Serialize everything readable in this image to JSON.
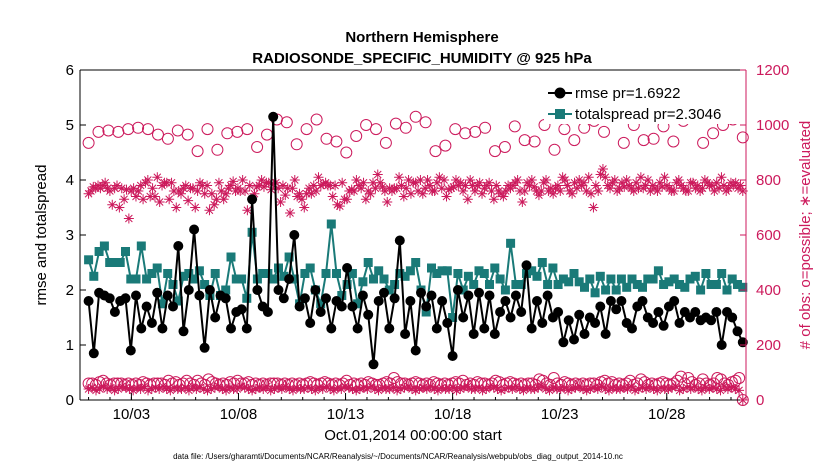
{
  "chart_data": {
    "type": "line",
    "title": [
      "Northern Hemisphere",
      "RADIOSONDE_SPECIFIC_HUMIDITY @ 925 hPa"
    ],
    "xlabel": "Oct.01,2014 00:00:00 start",
    "ylabel_left": "rmse and totalspread",
    "ylabel_right": "# of obs: o=possible; ∗=evaluated",
    "footer": "data file: /Users/gharamti/Documents/NCAR/Reanalysis/~/Documents/NCAR/Reanalysis/webpub/obs_diag_output_2014-10.nc",
    "x_range": [
      0.6,
      31.7
    ],
    "x_ticks": [
      {
        "day": 3,
        "label": "10/03"
      },
      {
        "day": 8,
        "label": "10/08"
      },
      {
        "day": 13,
        "label": "10/13"
      },
      {
        "day": 18,
        "label": "10/18"
      },
      {
        "day": 23,
        "label": "10/23"
      },
      {
        "day": 28,
        "label": "10/28"
      }
    ],
    "ylim_left": [
      0,
      6
    ],
    "yticks_left": [
      "0",
      "1",
      "2",
      "3",
      "4",
      "5",
      "6"
    ],
    "ylim_right": [
      0,
      1200
    ],
    "yticks_right": [
      "0",
      "200",
      "400",
      "600",
      "800",
      "1000",
      "1200"
    ],
    "legend": [
      {
        "label": "rmse pr=1.6922",
        "color": "#000000",
        "marker": "circle"
      },
      {
        "label": "totalspread pr=2.3046",
        "color": "#1a7a78",
        "marker": "square"
      }
    ],
    "colors": {
      "rmse": "#000000",
      "spread": "#1a7a78",
      "obs": "#cc1a5c"
    },
    "series": [
      {
        "name": "rmse",
        "axis": "left",
        "values": [
          1.8,
          0.85,
          1.95,
          1.9,
          1.85,
          1.6,
          1.8,
          1.85,
          0.9,
          1.9,
          1.3,
          1.7,
          1.4,
          1.95,
          1.3,
          1.9,
          1.7,
          2.8,
          1.25,
          2.0,
          3.1,
          1.9,
          0.95,
          2.0,
          1.5,
          1.9,
          1.85,
          1.3,
          1.6,
          1.65,
          1.3,
          3.65,
          2.0,
          1.7,
          1.6,
          5.15,
          2.0,
          1.85,
          2.2,
          3.0,
          1.7,
          1.85,
          1.4,
          2.0,
          1.6,
          1.85,
          1.3,
          1.8,
          1.7,
          2.4,
          1.7,
          1.3,
          1.9,
          1.55,
          0.65,
          1.8,
          1.95,
          1.3,
          1.85,
          2.9,
          1.2,
          1.8,
          0.9,
          1.95,
          1.7,
          1.9,
          1.3,
          1.8,
          1.4,
          0.8,
          2.0,
          1.5,
          1.9,
          1.2,
          1.95,
          1.3,
          1.9,
          1.2,
          1.6,
          1.8,
          1.5,
          1.9,
          1.6,
          2.45,
          1.3,
          1.8,
          1.4,
          1.9,
          1.5,
          1.6,
          1.05,
          1.45,
          1.1,
          1.55,
          1.2,
          1.5,
          1.4,
          1.7,
          1.2,
          1.8,
          1.65,
          1.8,
          1.4,
          1.3,
          1.7,
          1.8,
          1.5,
          1.4,
          1.6,
          1.35,
          1.7,
          1.8,
          1.4,
          1.6,
          1.5,
          1.6,
          1.45,
          1.5,
          1.45,
          1.6,
          1.0,
          1.6,
          1.5,
          1.25,
          1.05
        ]
      },
      {
        "name": "totalspread",
        "axis": "left",
        "values": [
          2.55,
          2.25,
          2.7,
          2.8,
          2.5,
          2.5,
          2.5,
          2.7,
          2.2,
          2.2,
          2.8,
          2.2,
          2.3,
          2.4,
          1.75,
          2.3,
          2.1,
          1.8,
          2.25,
          2.3,
          2.2,
          2.35,
          2.1,
          1.9,
          2.3,
          1.9,
          2.0,
          2.6,
          2.2,
          2.2,
          1.85,
          3.05,
          2.2,
          2.3,
          2.3,
          2.2,
          2.4,
          2.25,
          2.6,
          2.2,
          1.75,
          2.3,
          2.4,
          2.0,
          1.75,
          2.3,
          3.2,
          2.3,
          1.9,
          2.1,
          2.3,
          1.75,
          2.15,
          2.5,
          2.2,
          2.35,
          2.2,
          2.0,
          2.1,
          2.3,
          2.25,
          2.35,
          2.5,
          2.0,
          1.6,
          2.4,
          2.3,
          2.35,
          2.35,
          1.5,
          2.3,
          2.0,
          2.25,
          2.1,
          2.35,
          2.3,
          2.1,
          2.4,
          2.2,
          2.0,
          2.85,
          2.1,
          2.1,
          2.3,
          2.35,
          2.25,
          2.5,
          2.1,
          2.4,
          2.1,
          2.2,
          2.15,
          2.3,
          2.15,
          2.05,
          2.2,
          1.95,
          2.25,
          2.0,
          2.2,
          2.0,
          2.2,
          2.05,
          2.2,
          2.1,
          2.05,
          2.2,
          2.2,
          2.35,
          2.1,
          2.15,
          2.2,
          2.1,
          2.05,
          2.2,
          2.25,
          2.0,
          2.3,
          2.1,
          2.1,
          2.3,
          2.0,
          2.2,
          2.1,
          2.05
        ]
      },
      {
        "name": "possible obs",
        "axis": "right",
        "marker": "open-circle",
        "values": [
          935,
          975,
          980,
          975,
          985,
          990,
          985,
          965,
          950,
          980,
          965,
          905,
          985,
          910,
          970,
          975,
          985,
          920,
          965,
          1020,
          1010,
          930,
          985,
          1020,
          950,
          940,
          900,
          960,
          1000,
          985,
          935,
          1005,
          990,
          1030,
          1010,
          905,
          925,
          985,
          970,
          975,
          990,
          905,
          920,
          995,
          945,
          940,
          1000,
          910,
          985,
          945,
          990,
          1015,
          975,
          1030,
          935,
          1000,
          945,
          950,
          995,
          940,
          1015,
          1040,
          935,
          970,
          1000,
          1020,
          955
        ]
      },
      {
        "name": "evaluated obs",
        "axis": "right",
        "marker": "asterisk",
        "values": [
          750,
          760,
          775,
          770,
          780,
          770,
          780,
          790,
          770,
          760,
          710,
          770,
          780,
          700,
          770,
          730,
          765,
          660,
          760,
          770,
          740,
          760,
          780,
          730,
          790,
          800,
          740,
          770,
          740,
          810,
          720,
          780,
          790,
          790,
          730,
          790,
          760,
          700,
          760,
          750,
          770,
          780,
          725,
          770,
          770,
          700,
          760,
          790,
          780,
          750,
          780,
          690,
          750,
          710,
          730,
          790,
          760,
          730,
          750,
          770,
          780,
          795,
          760,
          770,
          760,
          800,
          760,
          690,
          780,
          730,
          750,
          775,
          780,
          800,
          775,
          790,
          790,
          765,
          785,
          790,
          770,
          720,
          780,
          745,
          770,
          680,
          770,
          800,
          740,
          750,
          730,
          700,
          750,
          770,
          750,
          780,
          760,
          810,
          780,
          785,
          790,
          780,
          780,
          740,
          780,
          710,
          705,
          790,
          730,
          730,
          760,
          765,
          760,
          800,
          780,
          770,
          790,
          730,
          760,
          750,
          790,
          770,
          820,
          790,
          775,
          760,
          720,
          770,
          760,
          770,
          770,
          810,
          780,
          740,
          770,
          800,
          750,
          790,
          790,
          760,
          800,
          750,
          770,
          800,
          780,
          760,
          760,
          790,
          810,
          770,
          800,
          740,
          765,
          770,
          775,
          800,
          780,
          790,
          760,
          780,
          730,
          800,
          780,
          760,
          780,
          790,
          750,
          770,
          780,
          790,
          760,
          730,
          780,
          760,
          750,
          740,
          760,
          780,
          770,
          780,
          790,
          800,
          760,
          720,
          760,
          790,
          780,
          800,
          775,
          760,
          745,
          760,
          790,
          800,
          760,
          770,
          750,
          770,
          780,
          760,
          810,
          800,
          780,
          760,
          750,
          790,
          770,
          800,
          780,
          790,
          760,
          810,
          750,
          700,
          780,
          760,
          820,
          840,
          810,
          780,
          770,
          790,
          800,
          760,
          770,
          790,
          775,
          800,
          780,
          770,
          760,
          790,
          770,
          810,
          770,
          780,
          800,
          760,
          780,
          770,
          760,
          790,
          775,
          810,
          780,
          770,
          760,
          760,
          790,
          800,
          780,
          770,
          760,
          760,
          790,
          790,
          770,
          780,
          760,
          770,
          800,
          790,
          780,
          780,
          760,
          790,
          770,
          810,
          780,
          760,
          770,
          790,
          780,
          790,
          770,
          780,
          760
        ]
      },
      {
        "name": "possible obs (low)",
        "axis": "right",
        "marker": "open-circle",
        "values": [
          60,
          60,
          55,
          65,
          70,
          60,
          55,
          60,
          60,
          60,
          55,
          60,
          55,
          60,
          55,
          65,
          60,
          55,
          60,
          60,
          60,
          55,
          70,
          60,
          65,
          55,
          60,
          70,
          60,
          55,
          70,
          60,
          55,
          75,
          65,
          60,
          55,
          60,
          55,
          65,
          60,
          70,
          60,
          60,
          65,
          55,
          60,
          55,
          60,
          55,
          60,
          60,
          60,
          55,
          60,
          55,
          60,
          55,
          60,
          55,
          60,
          65,
          60,
          55,
          60,
          65,
          60,
          55,
          60,
          55,
          60,
          70,
          55,
          60,
          55,
          60,
          55,
          65,
          60,
          55,
          55,
          60,
          65,
          60,
          80,
          65,
          60,
          60,
          55,
          60,
          65,
          60,
          55,
          60,
          55,
          65,
          60,
          55,
          60,
          55,
          60,
          65,
          60,
          70,
          55,
          60,
          55,
          65,
          60,
          60,
          55,
          60,
          70,
          65,
          55,
          60,
          65,
          60,
          55,
          60,
          55,
          60,
          60,
          55,
          75,
          70,
          60,
          55,
          80,
          60,
          55,
          65,
          60,
          55,
          60,
          55,
          60,
          55,
          60,
          60,
          55,
          65,
          70,
          60,
          65,
          55,
          60,
          55,
          60,
          70,
          55,
          60,
          75,
          65,
          55,
          60,
          55,
          60,
          65,
          60,
          55,
          60,
          70,
          85,
          60,
          80,
          65,
          55,
          60,
          75,
          60,
          55,
          60,
          80,
          75,
          60,
          55,
          65,
          70,
          80,
          0
        ]
      },
      {
        "name": "evaluated obs (low)",
        "axis": "right",
        "marker": "asterisk",
        "values": [
          40,
          45,
          35,
          40,
          50,
          40,
          45,
          35,
          40,
          50,
          45,
          40,
          35,
          45,
          40,
          50,
          35,
          40,
          45,
          40,
          50,
          40,
          35,
          45,
          40,
          40,
          45,
          35,
          50,
          40,
          45,
          40,
          35,
          40,
          45,
          50,
          40,
          35,
          45,
          40,
          40,
          50,
          45,
          40,
          35,
          40,
          45,
          40,
          50,
          35,
          40,
          45,
          40,
          50,
          40,
          35,
          45,
          40,
          40,
          45,
          40,
          35,
          45,
          40,
          50,
          40,
          35,
          45,
          40,
          50,
          45,
          40,
          35,
          40,
          45,
          40,
          50,
          40,
          35,
          45,
          40,
          40,
          45,
          35,
          40,
          45,
          50,
          40,
          35,
          40,
          45,
          40,
          50,
          40,
          35,
          45,
          40,
          40,
          45,
          35,
          40,
          45,
          50,
          40,
          40,
          45,
          35,
          40,
          50,
          45,
          40,
          35,
          40,
          45,
          40,
          50,
          40,
          35,
          45,
          40,
          40,
          45,
          50,
          40,
          35,
          45,
          40,
          40,
          45,
          35,
          40,
          45,
          50,
          40,
          35,
          40,
          45,
          40,
          50,
          40,
          35,
          45,
          40,
          40,
          45,
          40,
          50,
          35,
          40,
          45,
          40,
          50,
          40,
          35,
          45,
          40,
          40,
          45,
          50,
          35,
          40,
          45,
          40,
          50,
          40,
          35,
          45,
          40,
          45,
          40,
          35,
          50,
          40,
          45,
          40,
          35,
          0
        ]
      }
    ]
  }
}
